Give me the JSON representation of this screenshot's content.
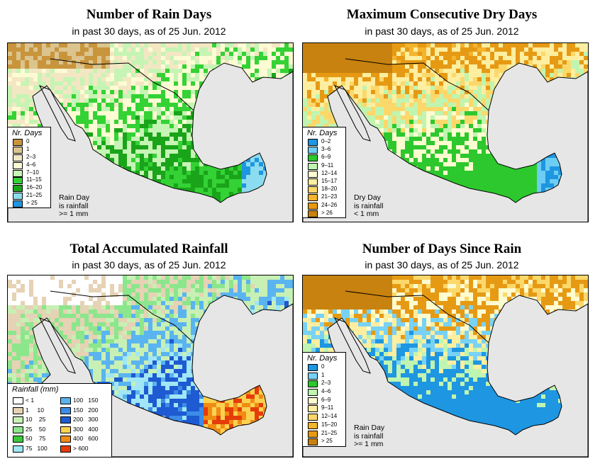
{
  "panels": [
    {
      "id": "rain-days",
      "title": "Number of Rain Days",
      "subtitle": "in past 30 days, as of  25 Jun. 2012",
      "legend_title": "Nr. Days",
      "legend": [
        {
          "label": "0",
          "color": "#c8943c"
        },
        {
          "label": "1",
          "color": "#dcc48e"
        },
        {
          "label": "2–3",
          "color": "#f3e7c3"
        },
        {
          "label": "4–6",
          "color": "#fdfbd4"
        },
        {
          "label": "7–10",
          "color": "#c6f4b4"
        },
        {
          "label": "11–15",
          "color": "#34d234"
        },
        {
          "label": "16–20",
          "color": "#1aa41a"
        },
        {
          "label": "21–25",
          "color": "#8cdcf0"
        },
        {
          "label": "> 25",
          "color": "#1e96e1"
        }
      ],
      "note": [
        "Rain Day",
        "is rainfall",
        ">= 1 mm"
      ]
    },
    {
      "id": "dry-days",
      "title": "Maximum Consecutive Dry Days",
      "subtitle": "in past 30 days, as of  25 Jun. 2012",
      "legend_title": "Nr. Days",
      "legend": [
        {
          "label": "0–2",
          "color": "#1e96e1"
        },
        {
          "label": "3–6",
          "color": "#6ecdf2"
        },
        {
          "label": "6–9",
          "color": "#2dc82d"
        },
        {
          "label": "9–11",
          "color": "#bff5b0"
        },
        {
          "label": "12–14",
          "color": "#fdfbd0"
        },
        {
          "label": "15–17",
          "color": "#fdeea0"
        },
        {
          "label": "18–20",
          "color": "#fcd86b"
        },
        {
          "label": "21–23",
          "color": "#f5b42d"
        },
        {
          "label": "24–26",
          "color": "#e69a14"
        },
        {
          "label": "> 26",
          "color": "#c8820f"
        }
      ],
      "note": [
        "Dry Day",
        "is rainfall",
        "< 1 mm"
      ]
    },
    {
      "id": "accum-rain",
      "title": "Total Accumulated Rainfall",
      "subtitle": "in past 30 days, as of  25 Jun. 2012",
      "legend_title": "Rainfall (mm)",
      "legend": [
        {
          "label": "< 1",
          "color": "#ffffff"
        },
        {
          "label": "1     10",
          "color": "#e6d2b4"
        },
        {
          "label": "10    25",
          "color": "#c8f0b4"
        },
        {
          "label": "25    50",
          "color": "#8ce68c"
        },
        {
          "label": "50    75",
          "color": "#3cc83c"
        },
        {
          "label": "75   100",
          "color": "#a0e6f5"
        },
        {
          "label": "100   150",
          "color": "#5ab4f0"
        },
        {
          "label": "150   200",
          "color": "#3c8ce6"
        },
        {
          "label": "200   300",
          "color": "#1e5ad2"
        },
        {
          "label": "300   400",
          "color": "#fad250"
        },
        {
          "label": "400   600",
          "color": "#f08c14"
        },
        {
          "label": "> 600",
          "color": "#e63c0a"
        }
      ]
    },
    {
      "id": "since-rain",
      "title": "Number of Days Since Rain",
      "subtitle": "in past 30 days, as of  25 Jun. 2012",
      "legend_title": "Nr. Days",
      "legend": [
        {
          "label": "0",
          "color": "#1e96e1"
        },
        {
          "label": "1",
          "color": "#78d2f5"
        },
        {
          "label": "2–3",
          "color": "#2dc82d"
        },
        {
          "label": "4–6",
          "color": "#bff5b0"
        },
        {
          "label": "6–9",
          "color": "#fdfbd0"
        },
        {
          "label": "9–11",
          "color": "#fdeea0"
        },
        {
          "label": "12–14",
          "color": "#fcd86b"
        },
        {
          "label": "15–20",
          "color": "#f5b42d"
        },
        {
          "label": "21–25",
          "color": "#e69a14"
        },
        {
          "label": "> 25",
          "color": "#c8820f"
        }
      ],
      "note": [
        "Rain Day",
        "is rainfall",
        ">= 1 mm"
      ]
    }
  ]
}
